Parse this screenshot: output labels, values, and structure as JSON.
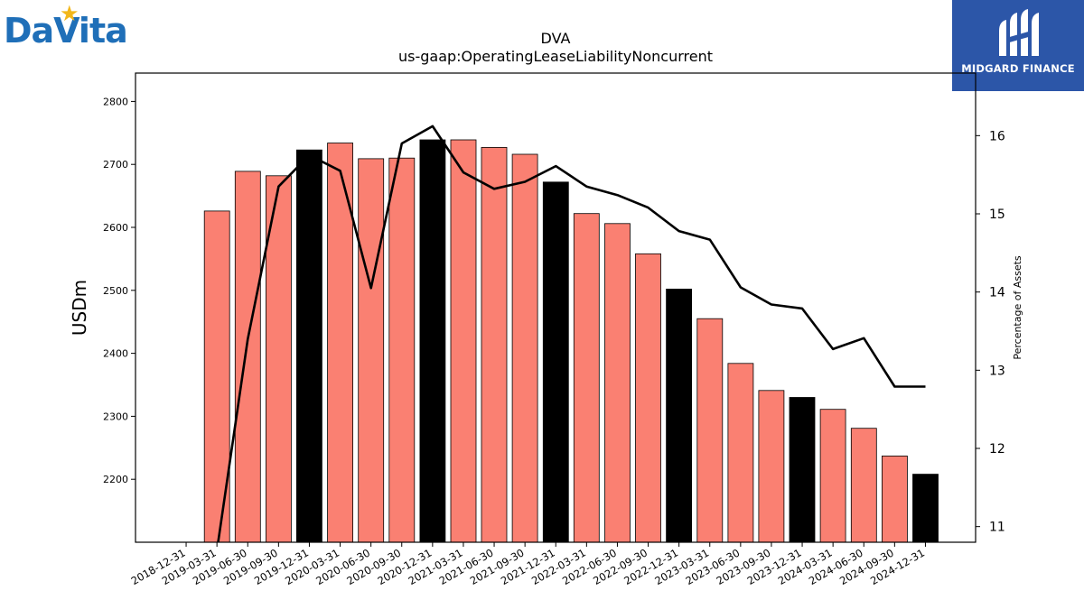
{
  "logos": {
    "left": {
      "text": "DaVita",
      "reg": "®"
    },
    "right": {
      "text": "MIDGARD FINANCE"
    }
  },
  "colors": {
    "bar_regular": "#fa8072",
    "bar_year_end": "#000000",
    "line": "#000000",
    "davita_blue": "#1f6fb8",
    "davita_star": "#f2b71b",
    "midgard_bg": "#2c56a8"
  },
  "chart_data": {
    "type": "bar",
    "title": "DVA",
    "subtitle": "us-gaap:OperatingLeaseLiabilityNoncurrent",
    "ylabel": "USDm",
    "y2label": "Percentage of Assets",
    "ylim": [
      2100,
      2845
    ],
    "y2lim": [
      10.8,
      16.8
    ],
    "yticks": [
      2200,
      2300,
      2400,
      2500,
      2600,
      2700,
      2800
    ],
    "y2ticks": [
      11,
      12,
      13,
      14,
      15,
      16
    ],
    "categories": [
      "2018-12-31",
      "2019-03-31",
      "2019-06-30",
      "2019-09-30",
      "2019-12-31",
      "2020-03-31",
      "2020-06-30",
      "2020-09-30",
      "2020-12-31",
      "2021-03-31",
      "2021-06-30",
      "2021-09-30",
      "2021-12-31",
      "2022-03-31",
      "2022-06-30",
      "2022-09-30",
      "2022-12-31",
      "2023-03-31",
      "2023-06-30",
      "2023-09-30",
      "2023-12-31",
      "2024-03-31",
      "2024-06-30",
      "2024-09-30",
      "2024-12-31"
    ],
    "year_end_categories": [
      "2019-12-31",
      "2020-12-31",
      "2021-12-31",
      "2022-12-31",
      "2023-12-31",
      "2024-12-31"
    ],
    "series": [
      {
        "type": "bar",
        "axis": "left",
        "values": [
          null,
          2626,
          2689,
          2682,
          2723,
          2734,
          2709,
          2710,
          2739,
          2739,
          2727,
          2716,
          2672,
          2622,
          2606,
          2558,
          2502,
          2455,
          2384,
          2341,
          2330,
          2311,
          2281,
          2237,
          2208
        ]
      },
      {
        "type": "line",
        "axis": "right",
        "values": [
          null,
          10.7,
          13.4,
          15.35,
          15.75,
          15.55,
          14.05,
          15.9,
          16.12,
          15.53,
          15.32,
          15.41,
          15.61,
          15.35,
          15.24,
          15.08,
          14.78,
          14.67,
          14.06,
          13.84,
          13.79,
          13.27,
          13.41,
          12.79,
          12.79
        ]
      }
    ],
    "grid": false,
    "legend": "none"
  }
}
